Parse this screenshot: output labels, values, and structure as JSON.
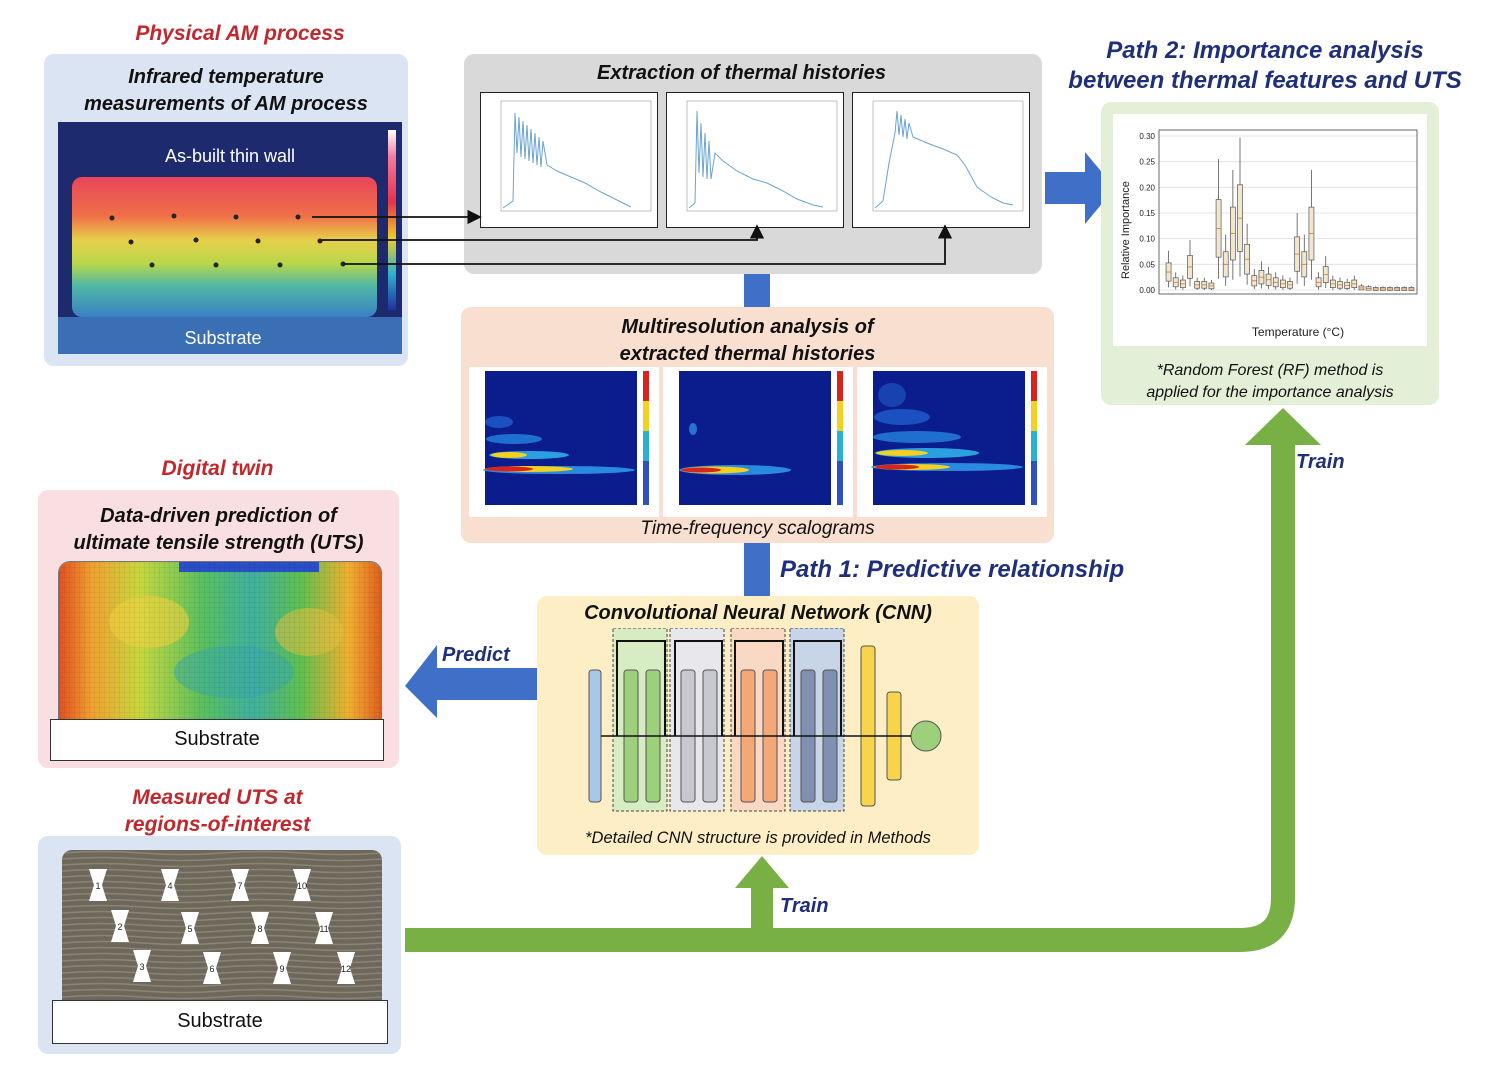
{
  "physical": {
    "label": "Physical AM process",
    "title_line1": "Infrared temperature",
    "title_line2": "measurements of AM process",
    "wall_label": "As-built thin wall",
    "substrate_label": "Substrate"
  },
  "extraction": {
    "title": "Extraction of thermal histories"
  },
  "path2": {
    "title_line1": "Path 2: Importance analysis",
    "title_line2": "between thermal features and UTS",
    "ylabel": "Relative Importance",
    "xlabel": "Temperature (°C)",
    "yticks": [
      "0.00",
      "0.05",
      "0.10",
      "0.15",
      "0.20",
      "0.25",
      "0.30"
    ],
    "note_line1": "*Random Forest (RF) method is",
    "note_line2": "applied for the importance analysis"
  },
  "multires": {
    "title_line1": "Multiresolution analysis of",
    "title_line2": "extracted thermal histories",
    "caption": "Time-frequency scalograms"
  },
  "digital_twin": {
    "label": "Digital twin",
    "title_line1": "Data-driven prediction of",
    "title_line2": "ultimate tensile strength (UTS)",
    "substrate_label": "Substrate"
  },
  "path1": {
    "title": "Path 1: Predictive relationship"
  },
  "cnn": {
    "title": "Convolutional Neural Network (CNN)",
    "note": "*Detailed CNN structure is provided in Methods"
  },
  "arrows": {
    "predict": "Predict",
    "train_up": "Train",
    "train_right": "Train"
  },
  "measured": {
    "title_line1": "Measured UTS at",
    "title_line2": "regions-of-interest",
    "substrate_label": "Substrate",
    "specimens": [
      "1",
      "2",
      "3",
      "4",
      "5",
      "6",
      "7",
      "8",
      "9",
      "10",
      "11",
      "12"
    ]
  },
  "colors": {
    "red_label": "#c0282d",
    "dark_blue": "#1f2f7a",
    "arrow_blue": "#3f6fc7",
    "arrow_green": "#78b046",
    "panel_blue": "#dbe4f3",
    "panel_gray": "#d9d9d9",
    "panel_peach": "#f8dfcf",
    "panel_pink": "#f9dfe1",
    "panel_yellow": "#fdeec6",
    "panel_green": "#e4efd8"
  },
  "chart_data": {
    "type": "box",
    "ylabel": "Relative Importance",
    "xlabel": "Temperature (°C)",
    "ylim": [
      0,
      0.3
    ],
    "medians": [
      0.035,
      0.015,
      0.012,
      0.045,
      0.01,
      0.01,
      0.008,
      0.12,
      0.05,
      0.11,
      0.14,
      0.06,
      0.018,
      0.025,
      0.02,
      0.015,
      0.012,
      0.01,
      0.07,
      0.05,
      0.11,
      0.015,
      0.03,
      0.012,
      0.01,
      0.009,
      0.012,
      0.004,
      0.003,
      0.002,
      0.002,
      0.002,
      0.002,
      0.002,
      0.002
    ]
  }
}
